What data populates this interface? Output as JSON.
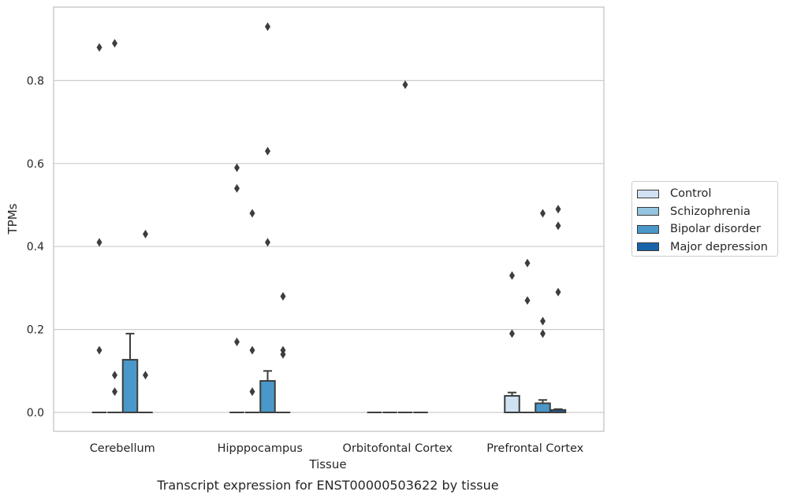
{
  "chart_data": {
    "type": "box",
    "xlabel": "Tissue",
    "ylabel": "TPMs",
    "caption": "Transcript expression for ENST00000503622 by tissue",
    "categories": [
      "Cerebellum",
      "Hipppocampus",
      "Orbitofontal Cortex",
      "Prefrontal Cortex"
    ],
    "ylim": [
      -0.045,
      0.98
    ],
    "yticks": [
      0.0,
      0.2,
      0.4,
      0.6,
      0.8
    ],
    "ytick_labels": [
      "0.0",
      "0.2",
      "0.4",
      "0.6",
      "0.8"
    ],
    "grid": "horizontal",
    "legend_position": "right",
    "series": [
      {
        "name": "Control",
        "color": "#d0e1f2",
        "boxes": [
          {
            "q1": 0,
            "median": 0,
            "q3": 0,
            "whislo": 0,
            "whishi": 0,
            "fliers": [
              0.15,
              0.41,
              0.88
            ]
          },
          {
            "q1": 0,
            "median": 0,
            "q3": 0,
            "whislo": 0,
            "whishi": 0,
            "fliers": [
              0.17,
              0.54,
              0.59
            ]
          },
          {
            "q1": 0,
            "median": 0,
            "q3": 0,
            "whislo": 0,
            "whishi": 0,
            "fliers": []
          },
          {
            "q1": 0,
            "median": 0,
            "q3": 0.04,
            "whislo": 0,
            "whishi": 0.048,
            "fliers": [
              0.19,
              0.33
            ]
          }
        ]
      },
      {
        "name": "Schizophrenia",
        "color": "#94c4df",
        "boxes": [
          {
            "q1": 0,
            "median": 0,
            "q3": 0,
            "whislo": 0,
            "whishi": 0,
            "fliers": [
              0.05,
              0.09,
              0.89
            ]
          },
          {
            "q1": 0,
            "median": 0,
            "q3": 0,
            "whislo": 0,
            "whishi": 0,
            "fliers": [
              0.05,
              0.15,
              0.48
            ]
          },
          {
            "q1": 0,
            "median": 0,
            "q3": 0,
            "whislo": 0,
            "whishi": 0,
            "fliers": []
          },
          {
            "q1": 0,
            "median": 0,
            "q3": 0,
            "whislo": 0,
            "whishi": 0,
            "fliers": [
              0.27,
              0.36
            ]
          }
        ]
      },
      {
        "name": "Bipolar disorder",
        "color": "#4a98c9",
        "boxes": [
          {
            "q1": 0,
            "median": 0,
            "q3": 0.127,
            "whislo": 0,
            "whishi": 0.19,
            "fliers": []
          },
          {
            "q1": 0,
            "median": 0,
            "q3": 0.076,
            "whislo": 0,
            "whishi": 0.1,
            "fliers": [
              0.41,
              0.63,
              0.93
            ]
          },
          {
            "q1": 0,
            "median": 0,
            "q3": 0,
            "whislo": 0,
            "whishi": 0,
            "fliers": [
              0.79
            ]
          },
          {
            "q1": 0,
            "median": 0,
            "q3": 0.022,
            "whislo": 0,
            "whishi": 0.03,
            "fliers": [
              0.19,
              0.22,
              0.48
            ]
          }
        ]
      },
      {
        "name": "Major depression",
        "color": "#1764ab",
        "boxes": [
          {
            "q1": 0,
            "median": 0,
            "q3": 0,
            "whislo": 0,
            "whishi": 0,
            "fliers": [
              0.09,
              0.43
            ]
          },
          {
            "q1": 0,
            "median": 0,
            "q3": 0,
            "whislo": 0,
            "whishi": 0,
            "fliers": [
              0.14,
              0.15,
              0.28
            ]
          },
          {
            "q1": 0,
            "median": 0,
            "q3": 0,
            "whislo": 0,
            "whishi": 0,
            "fliers": []
          },
          {
            "q1": 0,
            "median": 0,
            "q3": 0.006,
            "whislo": 0,
            "whishi": 0.008,
            "fliers": [
              0.29,
              0.45,
              0.49
            ]
          }
        ]
      }
    ]
  }
}
